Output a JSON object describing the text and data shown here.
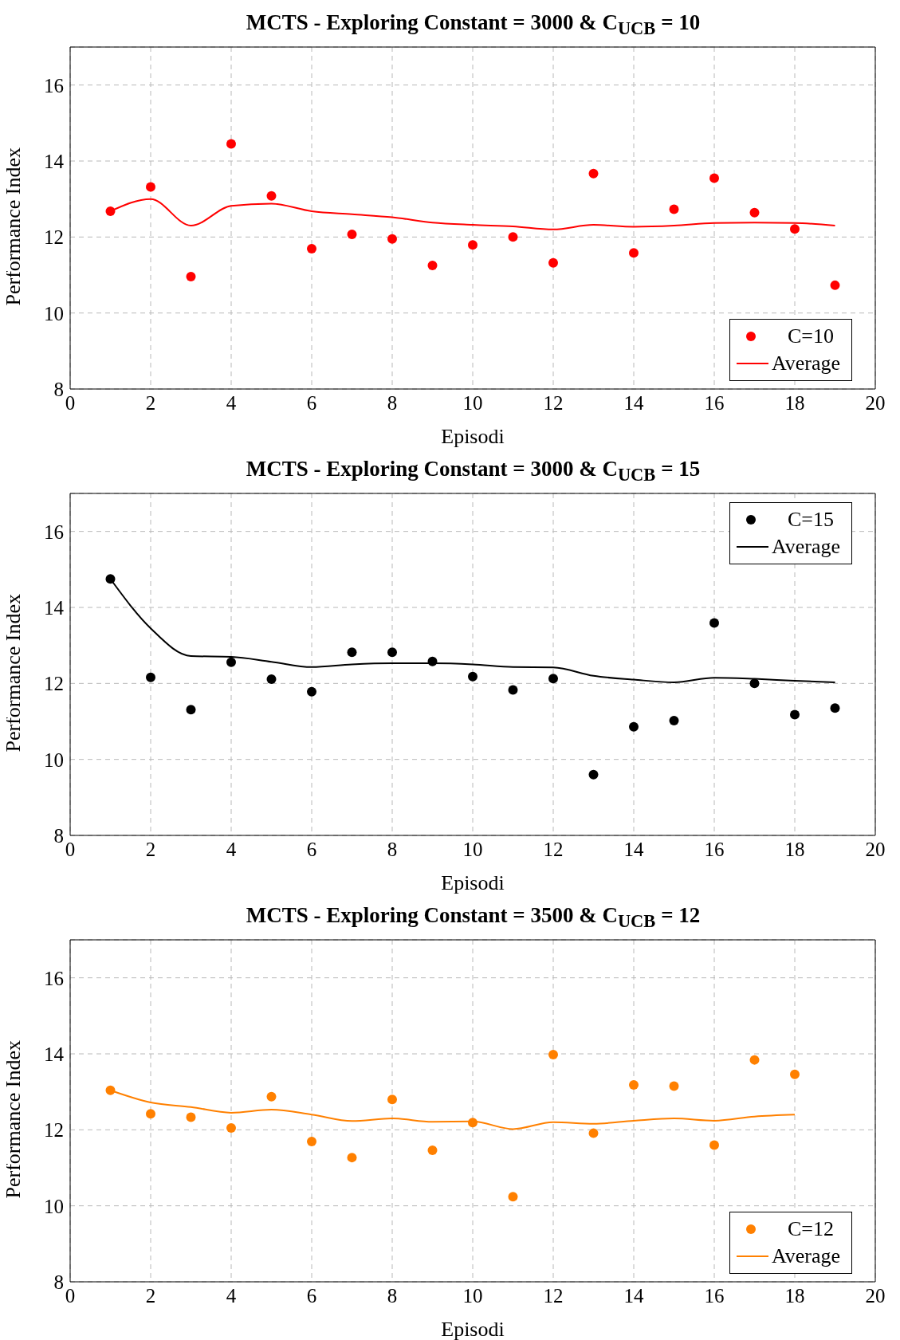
{
  "chart_data": [
    {
      "type": "scatter",
      "title": "MCTS - Exploring Constant = 3000 & C$_{UCB}$ = 10",
      "xlabel": "Episodi",
      "ylabel": "Performance Index",
      "x": [
        1,
        2,
        3,
        4,
        5,
        6,
        7,
        8,
        9,
        10,
        11,
        12,
        13,
        14,
        15,
        16,
        17,
        18,
        19
      ],
      "series": [
        {
          "name": "C=10",
          "color": "#ff0000",
          "marker": "circle",
          "values": [
            12.68,
            13.32,
            10.96,
            14.45,
            13.08,
            11.69,
            12.07,
            11.95,
            11.25,
            11.79,
            12.0,
            11.32,
            13.67,
            11.58,
            12.73,
            13.55,
            12.64,
            12.21,
            10.73
          ]
        },
        {
          "name": "Average",
          "type": "line",
          "color": "#ff0000",
          "marker": "none",
          "line_style": "solid",
          "values": [
            12.68,
            13.0,
            12.3,
            12.82,
            12.88,
            12.68,
            12.6,
            12.52,
            12.38,
            12.32,
            12.28,
            12.2,
            12.32,
            12.27,
            12.3,
            12.37,
            12.38,
            12.37,
            12.3
          ]
        }
      ],
      "xlim": [
        0,
        20
      ],
      "xticks": [
        0,
        2,
        4,
        6,
        8,
        10,
        12,
        14,
        16,
        18,
        20
      ],
      "ylim": [
        8,
        17
      ],
      "yticks": [
        8,
        10,
        12,
        14,
        16
      ],
      "grid": true,
      "legend": "bottom right"
    },
    {
      "type": "scatter",
      "title": "MCTS - Exploring Constant = 3000 & C$_{UCB}$ = 15",
      "xlabel": "Episodi",
      "ylabel": "Performance Index",
      "x": [
        1,
        2,
        3,
        4,
        5,
        6,
        7,
        8,
        9,
        10,
        11,
        12,
        13,
        14,
        15,
        16,
        17,
        18,
        19
      ],
      "series": [
        {
          "name": "C=15",
          "color": "#000000",
          "marker": "circle",
          "values": [
            14.75,
            12.16,
            11.31,
            12.56,
            12.11,
            11.78,
            12.82,
            12.82,
            12.58,
            12.18,
            11.83,
            12.13,
            9.6,
            10.86,
            11.02,
            13.59,
            12.0,
            11.18,
            11.35
          ]
        },
        {
          "name": "Average",
          "type": "line",
          "color": "#000000",
          "marker": "none",
          "line_style": "solid",
          "values": [
            14.75,
            13.45,
            12.72,
            12.7,
            12.57,
            12.43,
            12.5,
            12.53,
            12.53,
            12.5,
            12.43,
            12.42,
            12.2,
            12.1,
            12.03,
            12.15,
            12.12,
            12.07,
            12.03
          ]
        }
      ],
      "xlim": [
        0,
        20
      ],
      "xticks": [
        0,
        2,
        4,
        6,
        8,
        10,
        12,
        14,
        16,
        18,
        20
      ],
      "ylim": [
        8,
        17
      ],
      "yticks": [
        8,
        10,
        12,
        14,
        16
      ],
      "grid": true,
      "legend": "top right"
    },
    {
      "type": "scatter",
      "title": "MCTS - Exploring Constant = 3500 & C$_{UCB}$ = 12",
      "xlabel": "Episodi",
      "ylabel": "Performance Index",
      "x": [
        1,
        2,
        3,
        4,
        5,
        6,
        7,
        8,
        9,
        10,
        11,
        12,
        13,
        14,
        15,
        16,
        17,
        18
      ],
      "series": [
        {
          "name": "C=12",
          "color": "#ff8000",
          "marker": "circle",
          "values": [
            13.04,
            12.42,
            12.33,
            12.05,
            12.87,
            11.69,
            11.27,
            12.8,
            11.46,
            12.19,
            10.24,
            13.98,
            11.91,
            13.18,
            13.15,
            11.6,
            13.84,
            13.46
          ]
        },
        {
          "name": "Average",
          "type": "line",
          "color": "#ff8000",
          "marker": "none",
          "line_style": "solid",
          "values": [
            13.04,
            12.72,
            12.6,
            12.45,
            12.53,
            12.4,
            12.23,
            12.3,
            12.21,
            12.22,
            12.02,
            12.2,
            12.16,
            12.24,
            12.3,
            12.24,
            12.35,
            12.4
          ]
        }
      ],
      "xlim": [
        0,
        20
      ],
      "xticks": [
        0,
        2,
        4,
        6,
        8,
        10,
        12,
        14,
        16,
        18,
        20
      ],
      "ylim": [
        8,
        17
      ],
      "yticks": [
        8,
        10,
        12,
        14,
        16
      ],
      "grid": true,
      "legend": "bottom right"
    }
  ]
}
